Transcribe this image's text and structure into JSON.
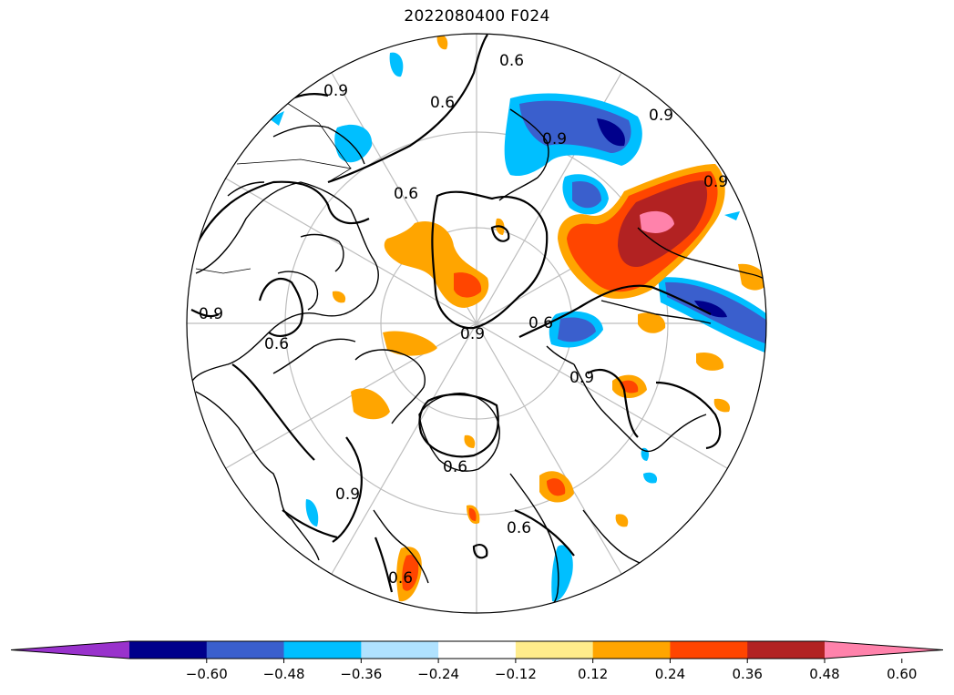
{
  "title": "2022080400 F024",
  "contour_label_1": "0.6",
  "contour_label_2": "0.9",
  "colorbar": {
    "ticks": [
      "−0.60",
      "−0.48",
      "−0.36",
      "−0.24",
      "−0.12",
      "0.12",
      "0.24",
      "0.36",
      "0.48",
      "0.60"
    ],
    "colors": [
      "#9932cc",
      "#00008b",
      "#3a5fcd",
      "#00bfff",
      "#b0e2ff",
      "#ffffff",
      "#ffec8b",
      "#ffa500",
      "#ff4500",
      "#b22222",
      "#ff82ab"
    ],
    "extend": "both"
  }
}
